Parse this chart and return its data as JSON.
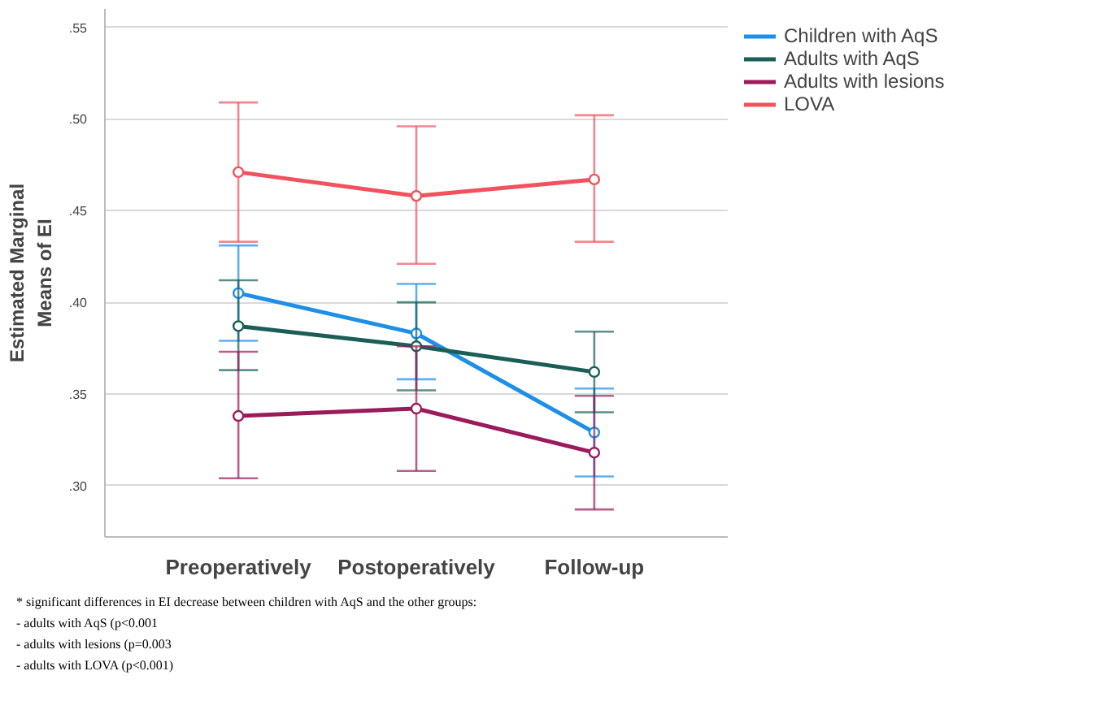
{
  "chart_data": {
    "type": "line",
    "ylabel": "Estimated Marginal\nMeans of EI",
    "categories": [
      "Preoperatively",
      "Postoperatively",
      "Follow-up"
    ],
    "series": [
      {
        "name": "Children with AqS",
        "color": "#1e8fe6",
        "values": [
          0.405,
          0.383,
          0.329
        ],
        "errors": [
          [
            0.379,
            0.431
          ],
          [
            0.358,
            0.41
          ],
          [
            0.305,
            0.353
          ]
        ]
      },
      {
        "name": "Adults with AqS",
        "color": "#1a5e55",
        "values": [
          0.387,
          0.376,
          0.362
        ],
        "errors": [
          [
            0.363,
            0.412
          ],
          [
            0.352,
            0.4
          ],
          [
            0.34,
            0.384
          ]
        ]
      },
      {
        "name": "Adults with lesions",
        "color": "#9b1b5a",
        "values": [
          0.338,
          0.342,
          0.318
        ],
        "errors": [
          [
            0.304,
            0.373
          ],
          [
            0.308,
            0.376
          ],
          [
            0.287,
            0.349
          ]
        ]
      },
      {
        "name": "LOVA",
        "color": "#f0525e",
        "values": [
          0.471,
          0.458,
          0.467
        ],
        "errors": [
          [
            0.433,
            0.509
          ],
          [
            0.421,
            0.496
          ],
          [
            0.433,
            0.502
          ]
        ]
      }
    ],
    "ylim": [
      0.272,
      0.56
    ],
    "yticks": [
      {
        "value": 0.3,
        "label": ".30"
      },
      {
        "value": 0.35,
        "label": ".35"
      },
      {
        "value": 0.4,
        "label": ".40"
      },
      {
        "value": 0.45,
        "label": ".45"
      },
      {
        "value": 0.5,
        "label": ".50"
      },
      {
        "value": 0.55,
        "label": ".55"
      }
    ],
    "grid": "y",
    "legend": "top right",
    "marker": "circle",
    "line_style": "solid",
    "annotations": [
      "* significant differences in EI decrease between children with AqS and the other groups:",
      "- adults with AqS (p<0.001",
      "- adults with lesions (p=0.003",
      "- adults with LOVA (p<0.001)"
    ]
  }
}
